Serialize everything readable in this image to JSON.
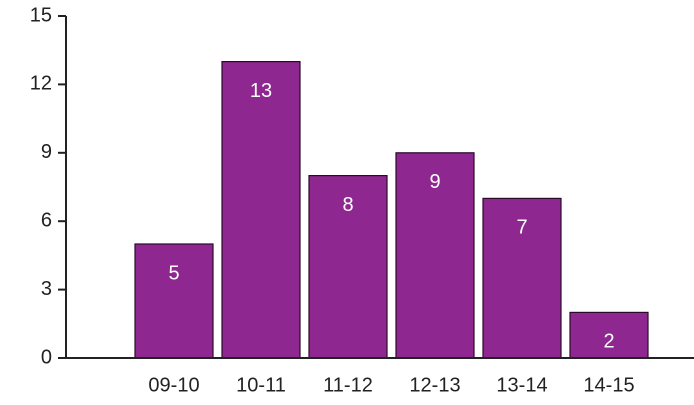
{
  "chart_data": {
    "type": "bar",
    "categories": [
      "09-10",
      "10-11",
      "11-12",
      "12-13",
      "13-14",
      "14-15"
    ],
    "values": [
      5,
      13,
      8,
      9,
      7,
      2
    ],
    "color": "#8e278f",
    "ylim": [
      0,
      15
    ],
    "yticks": [
      0,
      3,
      6,
      9,
      12,
      15
    ],
    "grid": false
  }
}
